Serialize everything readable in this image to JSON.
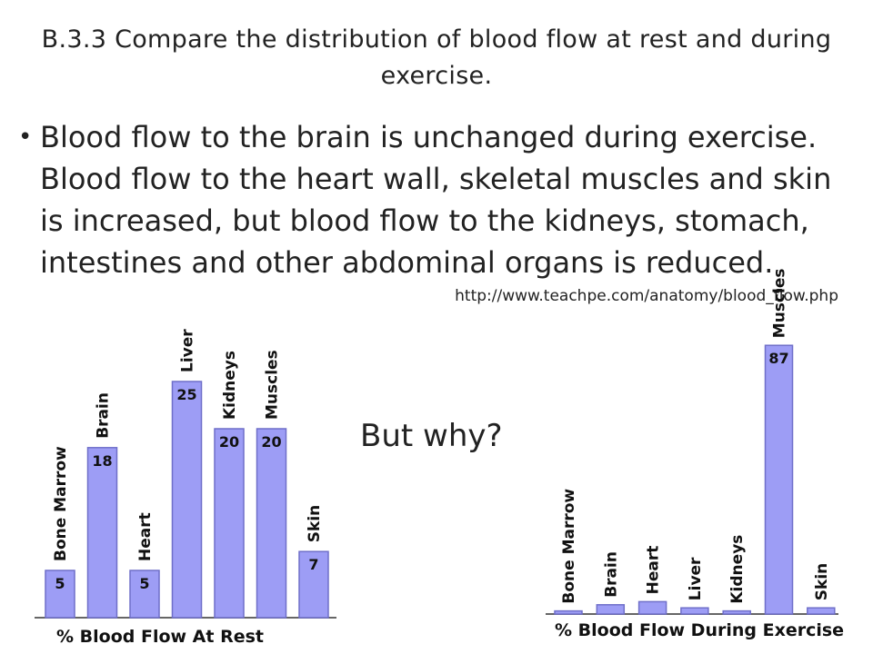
{
  "slide": {
    "title": "B.3.3 Compare the distribution  of blood flow at rest and during exercise.",
    "bullet": "Blood flow to the brain is unchanged during exercise. Blood flow to the heart wall, skeletal muscles and skin is increased, but blood flow to the kidneys, stomach, intestines and other abdominal organs is reduced.",
    "source_url": "http://www.teachpe.com/anatomy/blood_flow.php",
    "question": "But why?"
  },
  "colors": {
    "bar_fill": "#9d9df5",
    "bar_stroke": "#6f6fc9"
  },
  "chart_data": [
    {
      "type": "bar",
      "title": "% Blood Flow At Rest",
      "categories": [
        "Bone Marrow",
        "Brain",
        "Heart",
        "Liver",
        "Kidneys",
        "Muscles",
        "Skin"
      ],
      "values": [
        5,
        18,
        5,
        25,
        20,
        20,
        7
      ],
      "value_labels": [
        "5",
        "18",
        "5",
        "25",
        "20",
        "20",
        "7"
      ],
      "ylim": [
        0,
        28
      ],
      "grid": false
    },
    {
      "type": "bar",
      "title": "% Blood Flow During Exercise",
      "categories": [
        "Bone Marrow",
        "Brain",
        "Heart",
        "Liver",
        "Kidneys",
        "Muscles",
        "Skin"
      ],
      "values": [
        1,
        3,
        4,
        2,
        1,
        87,
        2
      ],
      "value_labels": [
        "",
        "",
        "",
        "",
        "",
        "87",
        ""
      ],
      "ylim": [
        0,
        90
      ],
      "grid": false
    }
  ]
}
